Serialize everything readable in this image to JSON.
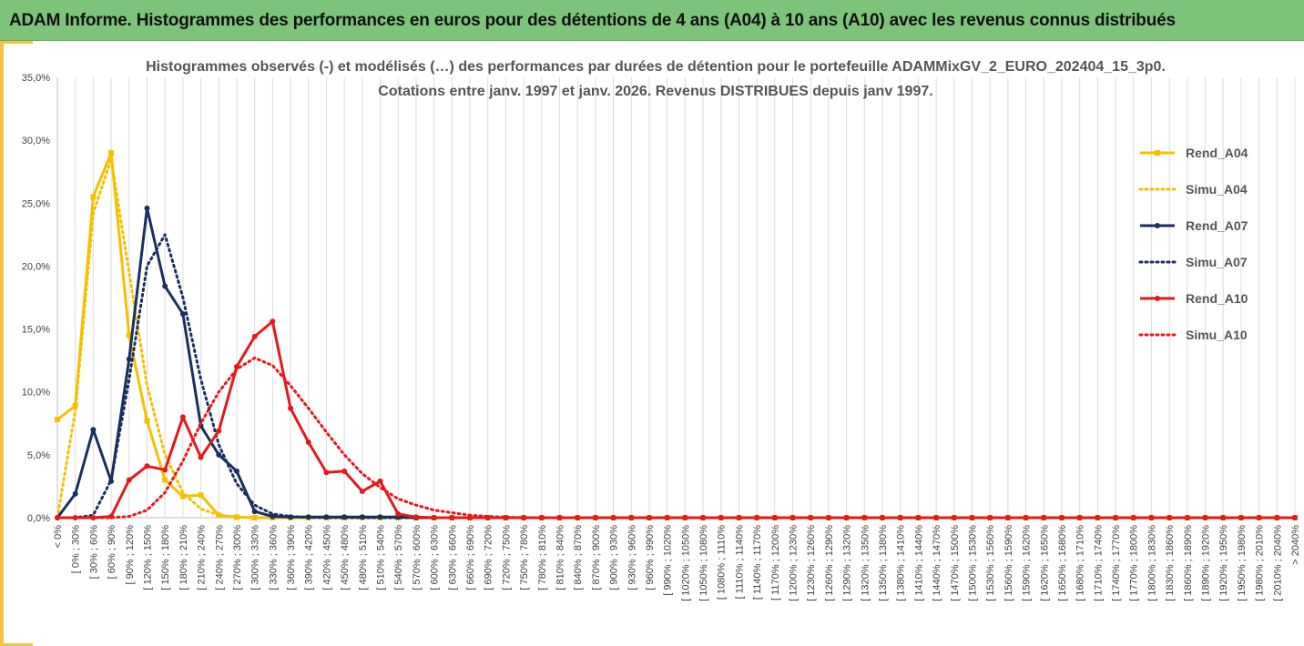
{
  "banner": {
    "title": "ADAM Informe. Histogrammes des performances en euros pour des détentions de 4 ans (A04) à 10 ans (A10) avec les revenus connus distribués"
  },
  "chart_data": {
    "type": "line",
    "title_lines": [
      "Histogrammes observés (-) et modélisés (…) des performances par durées de détention pour  le portefeuille ADAMMixGV_2_EURO_202404_15_3p0.",
      "Cotations  entre janv. 1997 et janv. 2026. Revenus DISTRIBUES depuis janv 1997."
    ],
    "xlabel": "",
    "ylabel": "",
    "ylim": [
      0,
      0.35
    ],
    "yticks": [
      "0,0%",
      "5,0%",
      "10,0%",
      "15,0%",
      "20,0%",
      "25,0%",
      "30,0%",
      "35,0%"
    ],
    "grid": "vertical",
    "legend_position": "right",
    "categories": [
      "< 0%",
      "[ 0% ; 30%",
      "[ 30% ; 60%",
      "[ 60% ; 90%",
      "[ 90% ; 120%",
      "[ 120% ; 150%",
      "[ 150% ; 180%",
      "[ 180% ; 210%",
      "[ 210% ; 240%",
      "[ 240% ; 270%",
      "[ 270% ; 300%",
      "[ 300% ; 330%",
      "[ 330% ; 360%",
      "[ 360% ; 390%",
      "[ 390% ; 420%",
      "[ 420% ; 450%",
      "[ 450% ; 480%",
      "[ 480% ; 510%",
      "[ 510% ; 540%",
      "[ 540% ; 570%",
      "[ 570% ; 600%",
      "[ 600% ; 630%",
      "[ 630% ; 660%",
      "[ 660% ; 690%",
      "[ 690% ; 720%",
      "[ 720% ; 750%",
      "[ 750% ; 780%",
      "[ 780% ; 810%",
      "[ 810% ; 840%",
      "[ 840% ; 870%",
      "[ 870% ; 900%",
      "[ 900% ; 930%",
      "[ 930% ; 960%",
      "[ 960% ; 990%",
      "[ 990% ; 1020%",
      "[ 1020% ; 1050%",
      "[ 1050% ; 1080%",
      "[ 1080% ; 1110%",
      "[ 1110% ; 1140%",
      "[ 1140% ; 1170%",
      "[ 1170% ; 1200%",
      "[ 1200% ; 1230%",
      "[ 1230% ; 1260%",
      "[ 1260% ; 1290%",
      "[ 1290% ; 1320%",
      "[ 1320% ; 1350%",
      "[ 1350% ; 1380%",
      "[ 1380% ; 1410%",
      "[ 1410% ; 1440%",
      "[ 1440% ; 1470%",
      "[ 1470% ; 1500%",
      "[ 1500% ; 1530%",
      "[ 1530% ; 1560%",
      "[ 1560% ; 1590%",
      "[ 1590% ; 1620%",
      "[ 1620% ; 1650%",
      "[ 1650% ; 1680%",
      "[ 1680% ; 1710%",
      "[ 1710% ; 1740%",
      "[ 1740% ; 1770%",
      "[ 1770% ; 1800%",
      "[ 1800% ; 1830%",
      "[ 1830% ; 1860%",
      "[ 1860% ; 1890%",
      "[ 1890% ; 1920%",
      "[ 1920% ; 1950%",
      "[ 1950% ; 1980%",
      "[ 1980% ; 2010%",
      "[ 2010% ; 2040%",
      "> 2040%"
    ],
    "series": [
      {
        "name": "Rend_A04",
        "color": "#f5c000",
        "dash": "solid",
        "marker": "square",
        "values": [
          0.078,
          0.089,
          0.255,
          0.29,
          0.145,
          0.077,
          0.03,
          0.017,
          0.018,
          0.002,
          0.0005,
          0,
          0,
          0,
          0,
          0,
          0,
          0,
          0,
          0,
          0,
          0,
          0,
          0,
          0,
          0,
          0,
          0,
          0,
          0,
          0,
          0,
          0,
          0,
          0,
          0,
          0,
          0,
          0,
          0,
          0,
          0,
          0,
          0,
          0,
          0,
          0,
          0,
          0,
          0,
          0,
          0,
          0,
          0,
          0,
          0,
          0,
          0,
          0,
          0,
          0,
          0,
          0,
          0,
          0,
          0,
          0,
          0,
          0,
          0
        ]
      },
      {
        "name": "Simu_A04",
        "color": "#f5c000",
        "dash": "dotted",
        "marker": "none",
        "values": [
          0.0,
          0.085,
          0.242,
          0.285,
          0.195,
          0.105,
          0.05,
          0.02,
          0.007,
          0.002,
          0.0005,
          0.0001,
          0,
          0,
          0,
          0,
          0,
          0,
          0,
          0,
          0,
          0,
          0,
          0,
          0,
          0,
          0,
          0,
          0,
          0,
          0,
          0,
          0,
          0,
          0,
          0,
          0,
          0,
          0,
          0,
          0,
          0,
          0,
          0,
          0,
          0,
          0,
          0,
          0,
          0,
          0,
          0,
          0,
          0,
          0,
          0,
          0,
          0,
          0,
          0,
          0,
          0,
          0,
          0,
          0,
          0,
          0,
          0,
          0,
          0
        ]
      },
      {
        "name": "Rend_A07",
        "color": "#1b2f5e",
        "dash": "solid",
        "marker": "circle",
        "values": [
          0.0,
          0.019,
          0.07,
          0.029,
          0.126,
          0.246,
          0.184,
          0.162,
          0.073,
          0.05,
          0.037,
          0.005,
          0.001,
          0.0005,
          0.0005,
          0.0005,
          0.0005,
          0.0005,
          0.0005,
          0.0005,
          0,
          0,
          0,
          0,
          0,
          0,
          0,
          0,
          0,
          0,
          0,
          0,
          0,
          0,
          0,
          0,
          0,
          0,
          0,
          0,
          0,
          0,
          0,
          0,
          0,
          0,
          0,
          0,
          0,
          0,
          0,
          0,
          0,
          0,
          0,
          0,
          0,
          0,
          0,
          0,
          0,
          0,
          0,
          0,
          0,
          0,
          0,
          0,
          0,
          0
        ]
      },
      {
        "name": "Simu_A07",
        "color": "#1b2f5e",
        "dash": "dotted",
        "marker": "none",
        "values": [
          0.0,
          0.0,
          0.002,
          0.03,
          0.11,
          0.2,
          0.225,
          0.175,
          0.11,
          0.058,
          0.027,
          0.01,
          0.003,
          0.001,
          0.0003,
          0,
          0,
          0,
          0,
          0,
          0,
          0,
          0,
          0,
          0,
          0,
          0,
          0,
          0,
          0,
          0,
          0,
          0,
          0,
          0,
          0,
          0,
          0,
          0,
          0,
          0,
          0,
          0,
          0,
          0,
          0,
          0,
          0,
          0,
          0,
          0,
          0,
          0,
          0,
          0,
          0,
          0,
          0,
          0,
          0,
          0,
          0,
          0,
          0,
          0,
          0,
          0,
          0,
          0,
          0
        ]
      },
      {
        "name": "Rend_A10",
        "color": "#e8171d",
        "dash": "solid",
        "marker": "circle",
        "values": [
          0.0,
          0.0,
          0.0,
          0.001,
          0.03,
          0.041,
          0.038,
          0.08,
          0.048,
          0.069,
          0.12,
          0.144,
          0.156,
          0.087,
          0.06,
          0.036,
          0.037,
          0.021,
          0.029,
          0.003,
          0.0005,
          0,
          0,
          0,
          0,
          0,
          0,
          0,
          0,
          0,
          0,
          0,
          0,
          0,
          0,
          0,
          0,
          0,
          0,
          0,
          0,
          0,
          0,
          0,
          0,
          0,
          0,
          0,
          0,
          0,
          0,
          0,
          0,
          0,
          0,
          0,
          0,
          0,
          0,
          0,
          0,
          0,
          0,
          0,
          0,
          0,
          0,
          0,
          0,
          0
        ]
      },
      {
        "name": "Simu_A10",
        "color": "#e8171d",
        "dash": "dotted",
        "marker": "none",
        "values": [
          0.0,
          0.0,
          0.0,
          0.0,
          0.001,
          0.006,
          0.02,
          0.045,
          0.075,
          0.1,
          0.118,
          0.127,
          0.121,
          0.105,
          0.087,
          0.068,
          0.05,
          0.035,
          0.024,
          0.015,
          0.01,
          0.006,
          0.004,
          0.002,
          0.001,
          0.0005,
          0,
          0,
          0,
          0,
          0,
          0,
          0,
          0,
          0,
          0,
          0,
          0,
          0,
          0,
          0,
          0,
          0,
          0,
          0,
          0,
          0,
          0,
          0,
          0,
          0,
          0,
          0,
          0,
          0,
          0,
          0,
          0,
          0,
          0,
          0,
          0,
          0,
          0,
          0,
          0,
          0,
          0,
          0,
          0
        ]
      }
    ]
  }
}
